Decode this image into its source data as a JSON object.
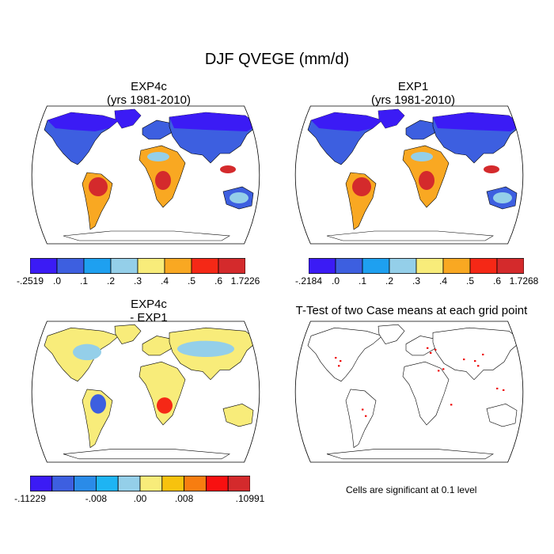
{
  "main_title": "DJF QVEGE (mm/d)",
  "panels": {
    "exp4c": {
      "title": "EXP4c",
      "subtitle": "(yrs 1981-2010)"
    },
    "exp1": {
      "title": "EXP1",
      "subtitle": "(yrs 1981-2010)"
    },
    "diff": {
      "title": "EXP4c",
      "subtitle": "- EXP1"
    },
    "ttest": {
      "title": "T-Test of two Case means at each grid point"
    }
  },
  "colorbars": {
    "exp4c": {
      "colors": [
        "#3b1bf5",
        "#3d5fe0",
        "#1ea0f0",
        "#94cfe9",
        "#f8ec7a",
        "#f9a822",
        "#f52816",
        "#d42a2c"
      ],
      "labels": [
        "-.2519",
        ".0",
        ".1",
        ".2",
        ".3",
        ".4",
        ".5",
        ".6",
        "1.7226"
      ]
    },
    "exp1": {
      "colors": [
        "#3b1bf5",
        "#3d5fe0",
        "#1ea0f0",
        "#94cfe9",
        "#f8ec7a",
        "#f9a822",
        "#f52816",
        "#d42a2c"
      ],
      "labels": [
        "-.2184",
        ".0",
        ".1",
        ".2",
        ".3",
        ".4",
        ".5",
        ".6",
        "1.7268"
      ]
    },
    "diff": {
      "colors": [
        "#3b1bf5",
        "#3d5fe0",
        "#2a8be8",
        "#1eb4f3",
        "#94cfe9",
        "#f8ec7a",
        "#f7c20e",
        "#f77d10",
        "#f81010",
        "#d42a2c"
      ],
      "labels": [
        "-.11229",
        "-.008",
        ".00",
        ".008",
        ".10991"
      ],
      "label_positions": [
        0,
        3,
        5,
        7,
        10
      ]
    }
  },
  "footnote": "Cells are significant at 0.1 level",
  "map_colors": {
    "ocean": "#ffffff",
    "high_lat": "#3b1bf5",
    "mid_lat": "#3d5fe0",
    "tropics": "#d42a2c",
    "tropics_edge": "#f9a822",
    "arid": "#94cfe9",
    "diff_base": "#f8ec7a",
    "diff_mix": "#94cfe9",
    "signif": "#ee0000"
  }
}
